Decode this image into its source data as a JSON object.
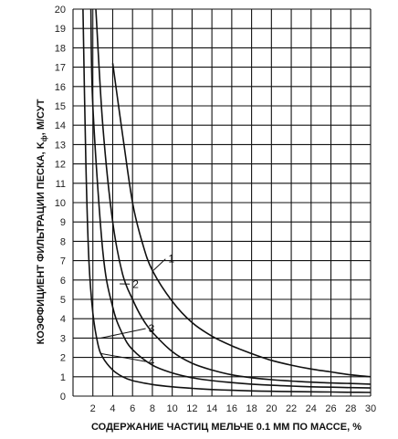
{
  "chart_data": {
    "type": "line",
    "title": "",
    "xlabel": "СОДЕРЖАНИЕ ЧАСТИЦ МЕЛЬЧЕ 0.1 ММ ПО МАССЕ, %",
    "ylabel": "КОЭФФИЦИЕНТ ФИЛЬТРАЦИИ ПЕСКА, K",
    "ylabel_sub": "ф",
    "ylabel_unit": ", М/СУТ",
    "xlim": [
      0,
      30
    ],
    "ylim": [
      0,
      20
    ],
    "x_ticks": [
      2,
      4,
      6,
      8,
      10,
      12,
      14,
      16,
      18,
      20,
      22,
      24,
      26,
      28,
      30
    ],
    "x_tick_labels": [
      "2",
      "4",
      "6",
      "8",
      "10",
      "12",
      "14",
      "16",
      "18",
      "20",
      "22",
      "24",
      "26",
      "28",
      "30"
    ],
    "y_ticks": [
      0,
      1,
      2,
      3,
      4,
      5,
      6,
      7,
      8,
      9,
      10,
      11,
      12,
      13,
      14,
      15,
      16,
      17,
      18,
      19,
      20
    ],
    "y_tick_labels": [
      "0",
      "1",
      "2",
      "3",
      "4",
      "5",
      "6",
      "7",
      "8",
      "9",
      "10",
      "11",
      "12",
      "13",
      "14",
      "15",
      "16",
      "17",
      "18",
      "19",
      "20"
    ],
    "grid": true,
    "series": [
      {
        "name": "1",
        "x": [
          4.0,
          5.0,
          6.0,
          7.0,
          8.0,
          10.0,
          12.0,
          14.0,
          16.0,
          18.0,
          20.0,
          22.0,
          24.0,
          26.0,
          28.0,
          30.0
        ],
        "y": [
          17.2,
          13.5,
          10.0,
          7.9,
          6.5,
          4.9,
          3.8,
          3.1,
          2.6,
          2.2,
          1.85,
          1.6,
          1.4,
          1.25,
          1.1,
          1.0
        ]
      },
      {
        "name": "2",
        "x": [
          2.3,
          3.0,
          4.0,
          5.0,
          6.0,
          7.0,
          8.0,
          10.0,
          12.0,
          14.0,
          16.0,
          18.0,
          20.0,
          22.0,
          24.0,
          26.0,
          28.0,
          30.0
        ],
        "y": [
          20.0,
          14.0,
          9.0,
          6.3,
          5.0,
          4.0,
          3.3,
          2.3,
          1.7,
          1.35,
          1.1,
          0.95,
          0.85,
          0.78,
          0.72,
          0.68,
          0.65,
          0.62
        ]
      },
      {
        "name": "3",
        "x": [
          1.8,
          2.0,
          3.0,
          4.0,
          5.0,
          6.0,
          8.0,
          10.0,
          12.0,
          14.0,
          16.0,
          18.0,
          20.0,
          22.0,
          24.0,
          26.0,
          28.0,
          30.0
        ],
        "y": [
          20.0,
          15.0,
          7.5,
          4.6,
          3.2,
          2.4,
          1.6,
          1.2,
          0.95,
          0.8,
          0.7,
          0.62,
          0.56,
          0.52,
          0.48,
          0.46,
          0.44,
          0.42
        ]
      },
      {
        "name": "4",
        "x": [
          1.0,
          1.3,
          1.6,
          2.0,
          2.5,
          3.0,
          4.0,
          5.0,
          6.0,
          8.0,
          10.0,
          12.0,
          14.0,
          16.0,
          18.0,
          20.0,
          22.0,
          24.0,
          26.0,
          28.0,
          30.0
        ],
        "y": [
          20.0,
          12.0,
          7.0,
          4.3,
          2.7,
          2.0,
          1.35,
          1.0,
          0.8,
          0.6,
          0.48,
          0.4,
          0.34,
          0.3,
          0.27,
          0.25,
          0.23,
          0.22,
          0.21,
          0.2,
          0.19
        ]
      }
    ],
    "annotations": [
      {
        "text": "1",
        "at": [
          9.6,
          6.9
        ],
        "points_to": [
          8.1,
          6.5
        ]
      },
      {
        "text": "2",
        "at": [
          6.0,
          5.6
        ],
        "points_to": [
          4.7,
          5.8
        ]
      },
      {
        "text": "3",
        "at": [
          7.6,
          3.3
        ],
        "points_to": [
          2.8,
          3.0
        ]
      },
      {
        "text": "4",
        "at": [
          7.6,
          1.6
        ],
        "points_to": [
          2.8,
          2.2
        ]
      }
    ]
  }
}
